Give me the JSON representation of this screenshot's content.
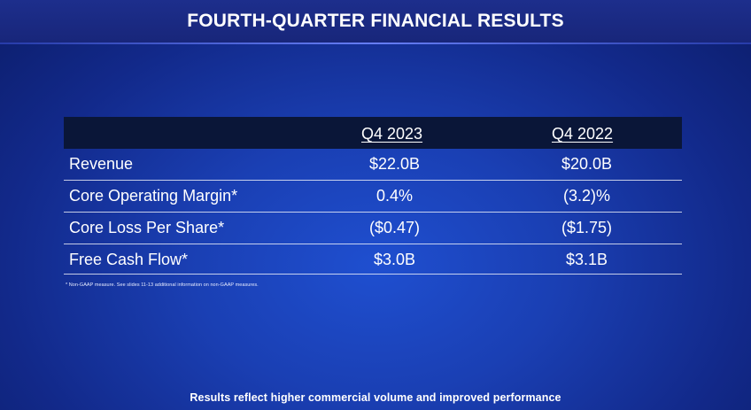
{
  "slide": {
    "title": "FOURTH-QUARTER FINANCIAL RESULTS",
    "footnote": "* Non-GAAP measure. See slides 11-13 additional information on non-GAAP measures.",
    "bottom_text": "Results reflect higher commercial volume and improved performance"
  },
  "table": {
    "headers": [
      "",
      "Q4 2023",
      "Q4 2022"
    ],
    "rows": [
      {
        "label": "Revenue",
        "q4_2023": "$22.0B",
        "q4_2022": "$20.0B"
      },
      {
        "label": "Core Operating Margin*",
        "q4_2023": "0.4%",
        "q4_2022": "(3.2)%"
      },
      {
        "label": "Core Loss Per Share*",
        "q4_2023": "($0.47)",
        "q4_2022": "($1.75)"
      },
      {
        "label": "Free Cash Flow*",
        "q4_2023": "$3.0B",
        "q4_2022": "$3.1B"
      }
    ]
  },
  "colors": {
    "background": "#1a3fb3",
    "header_band": "#0a1638",
    "text": "#ffffff"
  }
}
